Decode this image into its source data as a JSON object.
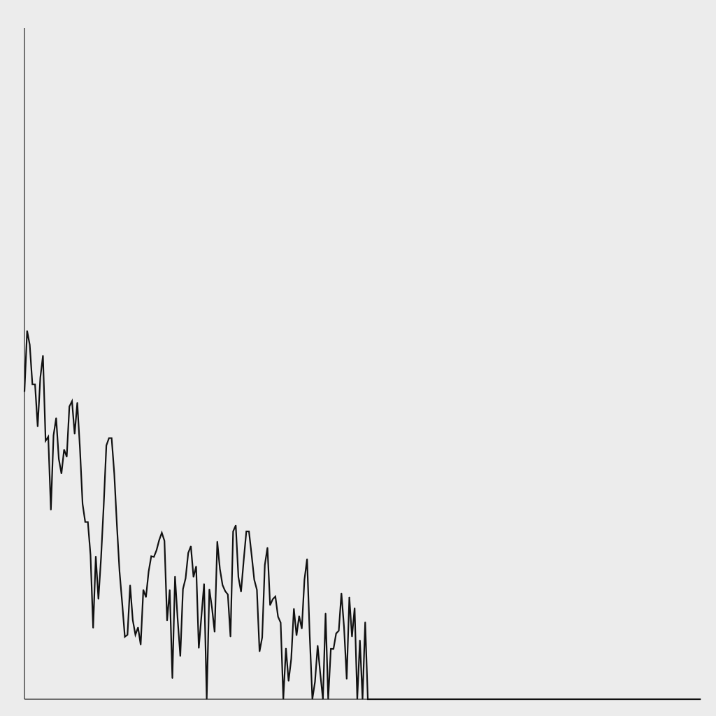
{
  "chart_data": {
    "type": "line",
    "title": "",
    "xlabel": "",
    "ylabel": "",
    "xlim": [
      0,
      256
    ],
    "ylim": [
      0,
      1
    ],
    "grid": false,
    "legend": "none",
    "colors": {
      "background": "#ececec",
      "line": "#111111",
      "axis": "#222222"
    },
    "series": [
      {
        "x": [
          0,
          1,
          2,
          3,
          4,
          5,
          6,
          7,
          8,
          9,
          10,
          11,
          12,
          13,
          14,
          15,
          16,
          17,
          18,
          19,
          20,
          21,
          22,
          23,
          24,
          25,
          26,
          27,
          28,
          29,
          30,
          31,
          32,
          33,
          34,
          35,
          36,
          37,
          38,
          39,
          40,
          41,
          42,
          43,
          44,
          45,
          46,
          47,
          48,
          49,
          50,
          51,
          52,
          53,
          54,
          55,
          56,
          57,
          58,
          59,
          60,
          61,
          62,
          63,
          64,
          65,
          66,
          67,
          68,
          69,
          70,
          71,
          72,
          73,
          74,
          75,
          76,
          77,
          78,
          79,
          80,
          81,
          82,
          83,
          84,
          85,
          86,
          87,
          88,
          89,
          90,
          91,
          92,
          93,
          94,
          95,
          96,
          97,
          98,
          99,
          100,
          101,
          102,
          103,
          104,
          105,
          106,
          107,
          108,
          109,
          110,
          111,
          112,
          113,
          114,
          115,
          116,
          117,
          118,
          119,
          120,
          121,
          122,
          123,
          124,
          125,
          126,
          127,
          128,
          129,
          130,
          131,
          132,
          133,
          256
        ],
        "values": [
          0.458,
          0.549,
          0.528,
          0.469,
          0.469,
          0.406,
          0.479,
          0.512,
          0.385,
          0.391,
          0.282,
          0.393,
          0.419,
          0.358,
          0.336,
          0.372,
          0.361,
          0.436,
          0.444,
          0.395,
          0.442,
          0.374,
          0.291,
          0.264,
          0.264,
          0.215,
          0.106,
          0.213,
          0.149,
          0.211,
          0.289,
          0.378,
          0.389,
          0.389,
          0.336,
          0.259,
          0.19,
          0.143,
          0.093,
          0.096,
          0.17,
          0.118,
          0.096,
          0.107,
          0.081,
          0.163,
          0.152,
          0.19,
          0.213,
          0.212,
          0.222,
          0.237,
          0.248,
          0.236,
          0.117,
          0.163,
          0.031,
          0.183,
          0.119,
          0.064,
          0.164,
          0.18,
          0.218,
          0.228,
          0.182,
          0.198,
          0.076,
          0.124,
          0.172,
          0.0,
          0.164,
          0.136,
          0.1,
          0.235,
          0.194,
          0.17,
          0.161,
          0.156,
          0.093,
          0.25,
          0.259,
          0.182,
          0.16,
          0.207,
          0.25,
          0.25,
          0.215,
          0.178,
          0.163,
          0.071,
          0.092,
          0.2,
          0.226,
          0.14,
          0.149,
          0.153,
          0.123,
          0.114,
          0.0,
          0.076,
          0.027,
          0.06,
          0.135,
          0.095,
          0.124,
          0.105,
          0.178,
          0.209,
          0.095,
          0.0,
          0.026,
          0.08,
          0.038,
          0.0,
          0.128,
          0.0,
          0.075,
          0.075,
          0.098,
          0.102,
          0.158,
          0.107,
          0.03,
          0.152,
          0.093,
          0.136,
          0.0,
          0.088,
          0.0,
          0.115,
          0.0,
          0.0,
          0.0,
          0.0,
          0.0
        ]
      }
    ]
  }
}
